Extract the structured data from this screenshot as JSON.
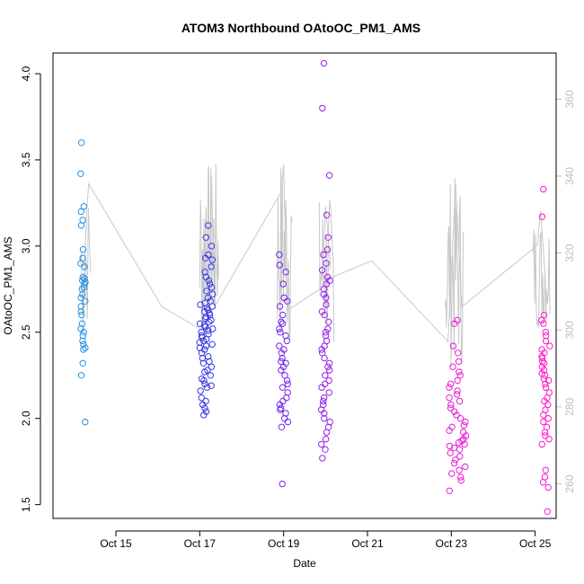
{
  "chart_data": {
    "type": "scatter",
    "title": "ATOM3 Northbound OAtoOC_PM1_AMS",
    "xlabel": "Date",
    "ylabel": "OAtoOC_PM1_AMS",
    "x_ticks": [
      "Oct 15",
      "Oct 17",
      "Oct 19",
      "Oct 21",
      "Oct 23",
      "Oct 25"
    ],
    "xlim": [
      "2017-10-14",
      "2017-10-26"
    ],
    "y_ticks": [
      "1.5",
      "2.0",
      "2.5",
      "3.0",
      "3.5",
      "4.0"
    ],
    "ylim": [
      1.42,
      4.12
    ],
    "y2_ticks": [
      "260",
      "280",
      "300",
      "320",
      "340",
      "360"
    ],
    "y2lim": [
      251,
      372
    ],
    "grid": false,
    "points_series": {
      "color_scale": [
        "#29ABE2",
        "#1F3FE0",
        "#8A20F0",
        "#E020D8",
        "#FF18C8"
      ],
      "clusters": [
        {
          "date": "2017-10-14",
          "values": [
            3.6,
            3.42,
            3.23,
            3.2,
            3.15,
            3.12,
            2.98,
            2.93,
            2.9,
            2.88,
            2.82,
            2.81,
            2.8,
            2.79,
            2.78,
            2.76,
            2.75,
            2.72,
            2.7,
            2.68,
            2.65,
            2.62,
            2.6,
            2.55,
            2.52,
            2.5,
            2.48,
            2.45,
            2.43,
            2.41,
            2.4,
            2.32,
            2.25,
            1.98
          ]
        },
        {
          "date": "2017-10-17",
          "values": [
            3.12,
            3.05,
            3.0,
            2.95,
            2.93,
            2.92,
            2.88,
            2.85,
            2.82,
            2.8,
            2.78,
            2.76,
            2.74,
            2.72,
            2.7,
            2.68,
            2.67,
            2.66,
            2.65,
            2.64,
            2.63,
            2.62,
            2.61,
            2.6,
            2.59,
            2.58,
            2.57,
            2.56,
            2.55,
            2.54,
            2.53,
            2.52,
            2.51,
            2.5,
            2.49,
            2.48,
            2.47,
            2.46,
            2.45,
            2.44,
            2.43,
            2.42,
            2.41,
            2.4,
            2.38,
            2.36,
            2.35,
            2.33,
            2.32,
            2.3,
            2.28,
            2.27,
            2.25,
            2.23,
            2.22,
            2.2,
            2.19,
            2.18,
            2.16,
            2.12,
            2.1,
            2.08,
            2.06,
            2.04,
            2.02
          ]
        },
        {
          "date": "2017-10-19",
          "values": [
            2.95,
            2.89,
            2.85,
            2.78,
            2.7,
            2.68,
            2.65,
            2.6,
            2.56,
            2.55,
            2.52,
            2.5,
            2.48,
            2.45,
            2.42,
            2.4,
            2.38,
            2.35,
            2.33,
            2.32,
            2.3,
            2.28,
            2.25,
            2.22,
            2.2,
            2.18,
            2.15,
            2.12,
            2.1,
            2.08,
            2.06,
            2.05,
            2.03,
            2.0,
            1.98,
            1.95,
            1.62
          ]
        },
        {
          "date": "2017-10-20",
          "values": [
            4.06,
            3.8,
            3.41,
            3.18,
            3.05,
            2.98,
            2.95,
            2.9,
            2.86,
            2.82,
            2.8,
            2.78,
            2.75,
            2.72,
            2.7,
            2.66,
            2.62,
            2.6,
            2.56,
            2.52,
            2.5,
            2.48,
            2.45,
            2.42,
            2.4,
            2.38,
            2.35,
            2.32,
            2.3,
            2.28,
            2.25,
            2.22,
            2.2,
            2.18,
            2.15,
            2.12,
            2.1,
            2.08,
            2.05,
            2.03,
            2.0,
            1.98,
            1.95,
            1.92,
            1.88,
            1.85,
            1.82,
            1.77
          ]
        },
        {
          "date": "2017-10-23",
          "values": [
            2.57,
            2.55,
            2.42,
            2.38,
            2.33,
            2.3,
            2.27,
            2.25,
            2.22,
            2.2,
            2.18,
            2.16,
            2.14,
            2.12,
            2.1,
            2.08,
            2.06,
            2.04,
            2.02,
            2.0,
            1.98,
            1.96,
            1.95,
            1.93,
            1.92,
            1.9,
            1.88,
            1.87,
            1.86,
            1.85,
            1.84,
            1.83,
            1.82,
            1.8,
            1.78,
            1.76,
            1.74,
            1.72,
            1.7,
            1.68,
            1.66,
            1.64,
            1.58
          ]
        },
        {
          "date": "2017-10-25",
          "values": [
            3.33,
            3.17,
            2.6,
            2.57,
            2.55,
            2.5,
            2.48,
            2.45,
            2.42,
            2.4,
            2.38,
            2.36,
            2.35,
            2.33,
            2.32,
            2.3,
            2.28,
            2.26,
            2.25,
            2.23,
            2.22,
            2.2,
            2.18,
            2.15,
            2.12,
            2.1,
            2.08,
            2.05,
            2.02,
            2.0,
            1.98,
            1.95,
            1.92,
            1.9,
            1.88,
            1.85,
            1.7,
            1.66,
            1.63,
            1.6,
            1.46
          ]
        }
      ]
    },
    "line_series": {
      "axis": "right",
      "color": "#c8c8c8",
      "points": [
        [
          "2017-10-14",
          300
        ],
        [
          "2017-10-14",
          330
        ],
        [
          "2017-10-14",
          338
        ],
        [
          "2017-10-16",
          306
        ],
        [
          "2017-10-17",
          300
        ],
        [
          "2017-10-17",
          332
        ],
        [
          "2017-10-17",
          305
        ],
        [
          "2017-10-17",
          340
        ],
        [
          "2017-10-17",
          306
        ],
        [
          "2017-10-19",
          336
        ],
        [
          "2017-10-19",
          343
        ],
        [
          "2017-10-19",
          305
        ],
        [
          "2017-10-20",
          311
        ],
        [
          "2017-10-20",
          332
        ],
        [
          "2017-10-20",
          317
        ],
        [
          "2017-10-20",
          313
        ],
        [
          "2017-10-21",
          318
        ],
        [
          "2017-10-23",
          297
        ],
        [
          "2017-10-23",
          338
        ],
        [
          "2017-10-23",
          306
        ],
        [
          "2017-10-25",
          322
        ],
        [
          "2017-10-25",
          331
        ],
        [
          "2017-10-25",
          312
        ]
      ]
    }
  }
}
